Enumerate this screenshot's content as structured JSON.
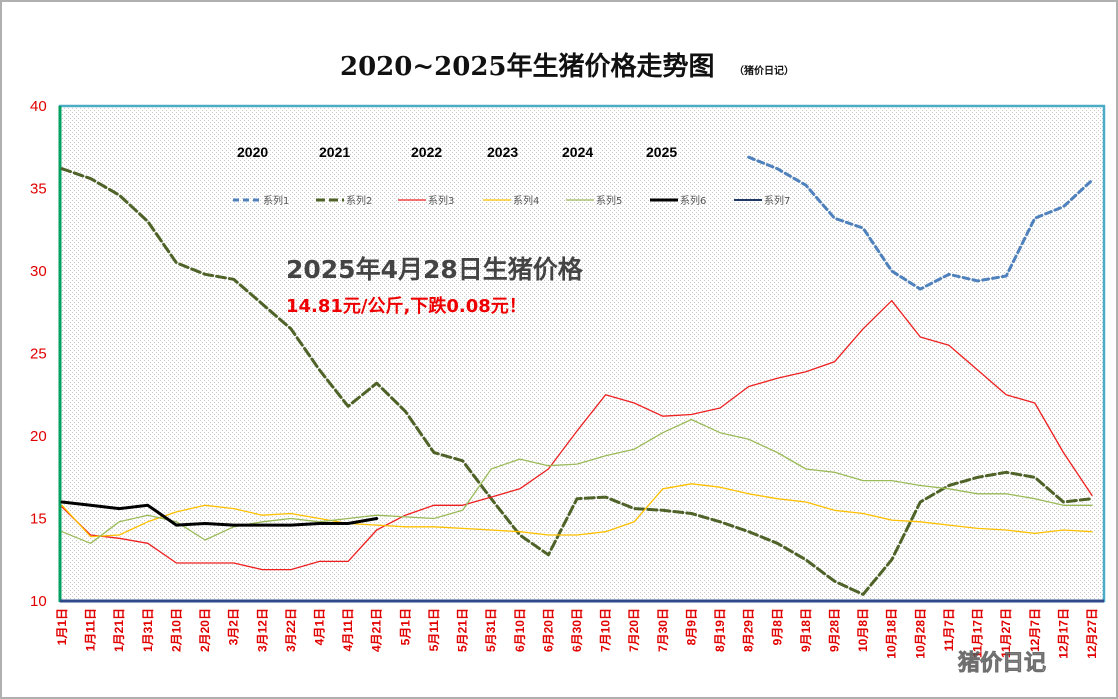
{
  "watermark": "猪价日记",
  "chart_data": {
    "type": "line",
    "title": "2020~2025年生猪价格走势图",
    "subtitle": "（猪价日记）",
    "ylim": [
      10,
      40
    ],
    "yticks": [
      10,
      15,
      20,
      25,
      30,
      35,
      40
    ],
    "grid": false,
    "legend_position": "top",
    "year_labels": [
      "2020",
      "2021",
      "2022",
      "2023",
      "2024",
      "2025"
    ],
    "annotation": {
      "line1": "2025年4月28日生猪价格",
      "line2": "14.81元/公斤,下跌0.08元！"
    },
    "categories": [
      "1月1日",
      "1月11日",
      "1月21日",
      "1月31日",
      "2月10日",
      "2月20日",
      "3月2日",
      "3月12日",
      "3月22日",
      "4月1日",
      "4月11日",
      "4月21日",
      "5月1日",
      "5月11日",
      "5月21日",
      "5月31日",
      "6月10日",
      "6月20日",
      "6月30日",
      "7月10日",
      "7月20日",
      "7月30日",
      "8月9日",
      "8月19日",
      "8月29日",
      "9月8日",
      "9月18日",
      "9月28日",
      "10月8日",
      "10月18日",
      "10月28日",
      "11月7日",
      "11月17日",
      "11月27日",
      "12月7日",
      "12月17日",
      "12月27日"
    ],
    "series": [
      {
        "name": "系列1",
        "color": "#4f81bd",
        "dash": "6,4",
        "width": 3,
        "values": [
          null,
          null,
          null,
          null,
          null,
          null,
          null,
          null,
          null,
          null,
          null,
          null,
          null,
          null,
          null,
          null,
          null,
          null,
          null,
          null,
          null,
          null,
          null,
          null,
          36.9,
          36.2,
          35.2,
          33.2,
          32.6,
          30.0,
          28.9,
          29.8,
          29.4,
          29.7,
          33.2,
          33.9,
          35.5
        ]
      },
      {
        "name": "系列2",
        "color": "#4f6228",
        "dash": "9,4",
        "width": 3,
        "values": [
          36.2,
          35.6,
          34.6,
          33.0,
          30.5,
          29.8,
          29.5,
          28.0,
          26.5,
          24.0,
          21.8,
          23.2,
          21.5,
          19.0,
          18.5,
          16.2,
          14.0,
          12.8,
          16.2,
          16.3,
          15.6,
          15.5,
          15.3,
          14.8,
          14.2,
          13.5,
          12.5,
          11.2,
          10.4,
          12.5,
          16.0,
          17.0,
          17.5,
          17.8,
          17.5,
          16.0,
          16.2
        ]
      },
      {
        "name": "系列3",
        "color": "#ee2020",
        "dash": "",
        "width": 1.3,
        "values": [
          15.7,
          14.0,
          13.8,
          13.5,
          12.3,
          12.3,
          12.3,
          11.9,
          11.9,
          12.4,
          12.4,
          14.3,
          15.2,
          15.8,
          15.8,
          16.3,
          16.8,
          18.0,
          20.3,
          22.5,
          22.0,
          21.2,
          21.3,
          21.7,
          23.0,
          23.5,
          23.9,
          24.5,
          26.5,
          28.2,
          26.0,
          25.5,
          24.0,
          22.5,
          22.0,
          19.0,
          16.4
        ]
      },
      {
        "name": "系列4",
        "color": "#ffc000",
        "dash": "",
        "width": 1.3,
        "values": [
          15.8,
          13.9,
          14.0,
          14.8,
          15.4,
          15.8,
          15.6,
          15.2,
          15.3,
          15.0,
          14.7,
          14.6,
          14.5,
          14.5,
          14.4,
          14.3,
          14.2,
          14.0,
          14.0,
          14.2,
          14.8,
          16.8,
          17.1,
          16.9,
          16.5,
          16.2,
          16.0,
          15.5,
          15.3,
          14.9,
          14.8,
          14.6,
          14.4,
          14.3,
          14.1,
          14.3,
          14.2
        ]
      },
      {
        "name": "系列5",
        "color": "#9bbb59",
        "dash": "",
        "width": 1.3,
        "values": [
          14.2,
          13.5,
          14.8,
          15.2,
          14.8,
          13.7,
          14.5,
          14.8,
          15.0,
          14.8,
          15.0,
          15.2,
          15.1,
          15.0,
          15.5,
          18.0,
          18.6,
          18.2,
          18.3,
          18.8,
          19.2,
          20.2,
          21.0,
          20.2,
          19.8,
          19.0,
          18.0,
          17.8,
          17.3,
          17.3,
          17.0,
          16.8,
          16.5,
          16.5,
          16.2,
          15.8,
          15.8
        ]
      },
      {
        "name": "系列6",
        "color": "#000000",
        "dash": "",
        "width": 3,
        "values": [
          16.0,
          15.8,
          15.6,
          15.8,
          14.6,
          14.7,
          14.6,
          14.6,
          14.6,
          14.7,
          14.7,
          15.0,
          null,
          null,
          null,
          null,
          null,
          null,
          null,
          null,
          null,
          null,
          null,
          null,
          null,
          null,
          null,
          null,
          null,
          null,
          null,
          null,
          null,
          null,
          null,
          null,
          null
        ]
      },
      {
        "name": "系列7",
        "color": "#1f3864",
        "dash": "",
        "width": 2,
        "values": [
          null,
          null,
          null,
          null,
          null,
          null,
          null,
          null,
          null,
          null,
          null,
          null,
          null,
          null,
          null,
          null,
          null,
          null,
          null,
          null,
          null,
          null,
          null,
          null,
          null,
          null,
          null,
          null,
          null,
          null,
          null,
          null,
          null,
          null,
          null,
          null,
          null
        ]
      }
    ]
  }
}
